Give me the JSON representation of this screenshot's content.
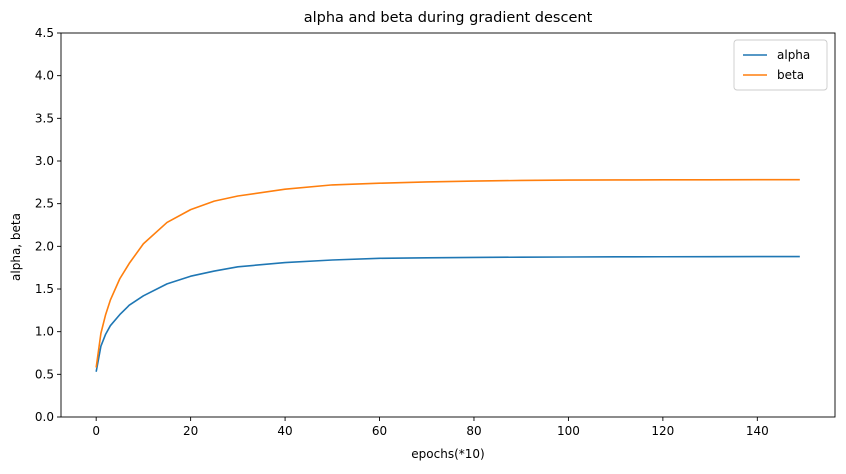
{
  "chart_data": {
    "type": "line",
    "title": "alpha and beta during gradient descent",
    "xlabel": "epochs(*10)",
    "ylabel": "alpha, beta",
    "xlim": [
      -7.45,
      156.45
    ],
    "ylim": [
      0,
      4.5
    ],
    "x_ticks": [
      0,
      20,
      40,
      60,
      80,
      100,
      120,
      140
    ],
    "x_tick_labels": [
      "0",
      "20",
      "40",
      "60",
      "80",
      "100",
      "120",
      "140"
    ],
    "y_ticks": [
      0,
      0.5,
      1,
      1.5,
      2,
      2.5,
      3,
      3.5,
      4,
      4.5
    ],
    "y_tick_labels": [
      "0.0",
      "0.5",
      "1.0",
      "1.5",
      "2.0",
      "2.5",
      "3.0",
      "3.5",
      "4.0",
      "4.5"
    ],
    "grid": false,
    "legend_position": "top-right",
    "series": [
      {
        "name": "alpha",
        "color": "#1f77b4",
        "x": [
          0,
          1,
          2,
          3,
          5,
          7,
          10,
          15,
          20,
          25,
          30,
          40,
          50,
          60,
          70,
          80,
          90,
          100,
          110,
          120,
          130,
          140,
          149
        ],
        "y": [
          0.53,
          0.83,
          0.97,
          1.07,
          1.2,
          1.31,
          1.42,
          1.56,
          1.65,
          1.71,
          1.76,
          1.81,
          1.84,
          1.86,
          1.865,
          1.87,
          1.873,
          1.875,
          1.877,
          1.878,
          1.879,
          1.88,
          1.88
        ]
      },
      {
        "name": "beta",
        "color": "#ff7f0e",
        "x": [
          0,
          1,
          2,
          3,
          5,
          7,
          10,
          15,
          20,
          25,
          30,
          40,
          50,
          60,
          70,
          80,
          90,
          100,
          110,
          120,
          130,
          140,
          149
        ],
        "y": [
          0.58,
          0.98,
          1.2,
          1.37,
          1.62,
          1.8,
          2.03,
          2.28,
          2.43,
          2.53,
          2.59,
          2.67,
          2.72,
          2.74,
          2.755,
          2.765,
          2.772,
          2.776,
          2.778,
          2.779,
          2.78,
          2.781,
          2.781
        ]
      }
    ]
  }
}
